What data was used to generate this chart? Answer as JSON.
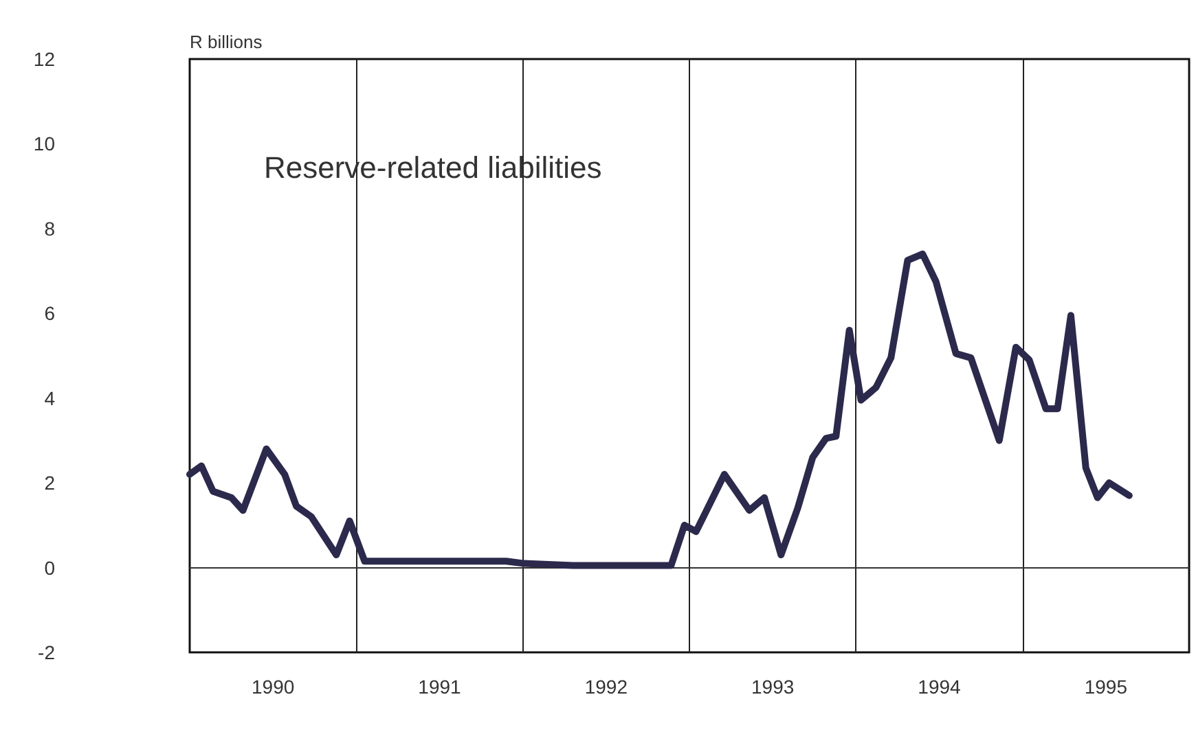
{
  "chart_data": {
    "type": "line",
    "ylabel": "R billions",
    "annotations": [
      "Reserve-related liabilities"
    ],
    "xlim": [
      1990,
      1996
    ],
    "xticks": [
      {
        "value": 1991,
        "label": null
      },
      {
        "value": 1992,
        "label": null
      },
      {
        "value": 1993,
        "label": null
      },
      {
        "value": 1994,
        "label": null
      },
      {
        "value": 1995,
        "label": null
      },
      {
        "value": 1990.5,
        "label": "1990"
      },
      {
        "value": 1991.5,
        "label": "1991"
      },
      {
        "value": 1992.5,
        "label": "1992"
      },
      {
        "value": 1993.5,
        "label": "1993"
      },
      {
        "value": 1994.5,
        "label": "1994"
      },
      {
        "value": 1995.5,
        "label": "1995"
      }
    ],
    "ylim": [
      -2,
      12
    ],
    "yticks": [
      -2,
      0,
      2,
      4,
      6,
      8,
      10,
      12
    ],
    "grid": "x",
    "marker": "none",
    "line_style": "solid",
    "ref_lines": [
      {
        "axis": "y",
        "value": 0,
        "color": "#333333"
      }
    ],
    "series": [
      {
        "color": "#2b2a4c",
        "x": [
          1990.0,
          1990.07,
          1990.14,
          1990.25,
          1990.32,
          1990.46,
          1990.57,
          1990.64,
          1990.73,
          1990.88,
          1990.96,
          1991.05,
          1991.3,
          1991.6,
          1991.9,
          1992.0,
          1992.3,
          1992.6,
          1992.89,
          1992.97,
          1993.04,
          1993.21,
          1993.36,
          1993.45,
          1993.55,
          1993.65,
          1993.74,
          1993.82,
          1993.88,
          1993.96,
          1994.03,
          1994.12,
          1994.21,
          1994.31,
          1994.4,
          1994.48,
          1994.6,
          1994.69,
          1994.86,
          1994.96,
          1995.04,
          1995.14,
          1995.21,
          1995.29,
          1995.38,
          1995.45,
          1995.52,
          1995.64
        ],
        "values": [
          2.2,
          2.4,
          1.8,
          1.65,
          1.35,
          2.8,
          2.2,
          1.45,
          1.2,
          0.3,
          1.1,
          0.15,
          0.15,
          0.15,
          0.15,
          0.1,
          0.05,
          0.05,
          0.05,
          1.0,
          0.85,
          2.2,
          1.35,
          1.65,
          0.3,
          1.4,
          2.6,
          3.05,
          3.1,
          5.6,
          3.95,
          4.25,
          4.95,
          7.25,
          7.4,
          6.75,
          5.05,
          4.95,
          3.0,
          5.2,
          4.9,
          3.75,
          3.75,
          5.95,
          2.35,
          1.65,
          2.0,
          1.7
        ]
      }
    ]
  }
}
